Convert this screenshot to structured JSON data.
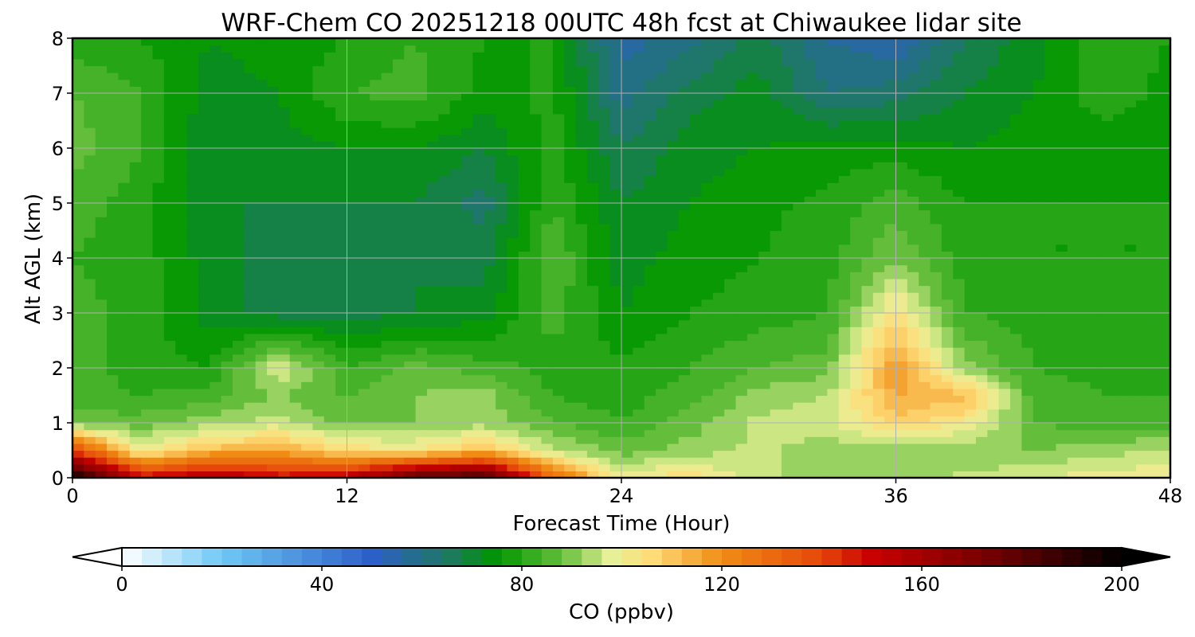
{
  "chart_data": {
    "type": "heatmap",
    "title": "WRF-Chem CO  20251218 00UTC 48h fcst at Chiwaukee lidar site",
    "xlabel": "Forecast Time (Hour)",
    "ylabel": "Alt AGL (km)",
    "xlim": [
      0,
      48
    ],
    "ylim": [
      0,
      8
    ],
    "x_ticks": [
      0,
      12,
      24,
      36,
      48
    ],
    "y_ticks": [
      0,
      1,
      2,
      3,
      4,
      5,
      6,
      7,
      8
    ],
    "grid": true,
    "colorbar": {
      "label": "CO  (ppbv)",
      "range": [
        0,
        200
      ],
      "ticks": [
        0,
        40,
        80,
        120,
        160,
        200
      ],
      "extend": "both",
      "orientation": "horizontal",
      "placement": "bottom"
    },
    "x": [
      0,
      3,
      6,
      9,
      12,
      15,
      18,
      21,
      24,
      27,
      30,
      33,
      36,
      39,
      42,
      45,
      48
    ],
    "y": [
      0,
      0.5,
      1,
      1.5,
      2,
      3,
      4,
      5,
      6,
      7,
      8
    ],
    "z": [
      [
        200,
        150,
        160,
        150,
        155,
        180,
        185,
        130,
        100,
        105,
        95,
        92,
        92,
        95,
        98,
        100,
        102
      ],
      [
        140,
        100,
        112,
        115,
        105,
        102,
        112,
        95,
        88,
        92,
        95,
        92,
        90,
        90,
        90,
        92,
        95
      ],
      [
        88,
        88,
        92,
        96,
        88,
        90,
        92,
        86,
        82,
        88,
        95,
        96,
        108,
        102,
        86,
        84,
        84
      ],
      [
        84,
        82,
        84,
        90,
        86,
        90,
        92,
        82,
        80,
        84,
        92,
        94,
        115,
        112,
        84,
        82,
        82
      ],
      [
        84,
        80,
        78,
        98,
        82,
        88,
        84,
        80,
        79,
        82,
        86,
        88,
        118,
        92,
        82,
        81,
        82
      ],
      [
        84,
        80,
        72,
        68,
        68,
        70,
        72,
        84,
        74,
        78,
        80,
        82,
        104,
        82,
        80,
        80,
        81
      ],
      [
        82,
        80,
        72,
        68,
        66,
        70,
        68,
        86,
        72,
        76,
        78,
        80,
        90,
        80,
        78,
        78,
        78
      ],
      [
        84,
        80,
        70,
        70,
        70,
        70,
        64,
        82,
        70,
        74,
        77,
        79,
        84,
        78,
        78,
        78,
        78
      ],
      [
        88,
        82,
        70,
        72,
        74,
        74,
        70,
        80,
        66,
        72,
        74,
        76,
        76,
        74,
        76,
        76,
        76
      ],
      [
        86,
        82,
        72,
        74,
        82,
        84,
        76,
        79,
        60,
        68,
        72,
        62,
        64,
        70,
        74,
        80,
        77
      ],
      [
        80,
        78,
        74,
        76,
        78,
        82,
        78,
        78,
        56,
        60,
        68,
        58,
        54,
        66,
        72,
        80,
        78
      ]
    ]
  }
}
